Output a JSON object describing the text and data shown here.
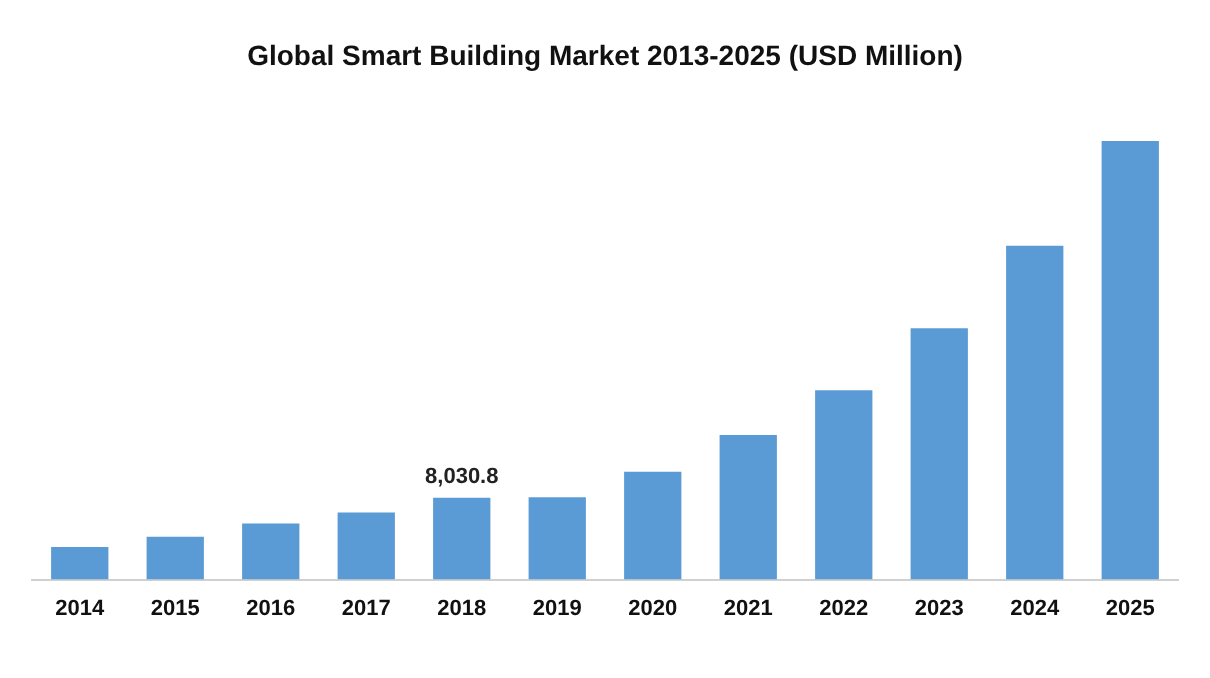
{
  "chart_data": {
    "type": "bar",
    "title": "Global Smart Building Market 2013-2025 (USD Million)",
    "categories": [
      "2014",
      "2015",
      "2016",
      "2017",
      "2018",
      "2019",
      "2020",
      "2021",
      "2022",
      "2023",
      "2024",
      "2025"
    ],
    "values": [
      3200,
      4200,
      5500,
      6600,
      8030.8,
      8100,
      10600,
      14200,
      18600,
      24700,
      32800,
      43100
    ],
    "value_labels": [
      null,
      null,
      null,
      null,
      "8,030.8",
      null,
      null,
      null,
      null,
      null,
      null,
      null
    ],
    "color": "#5b9bd5",
    "grid": false,
    "legend": false
  }
}
